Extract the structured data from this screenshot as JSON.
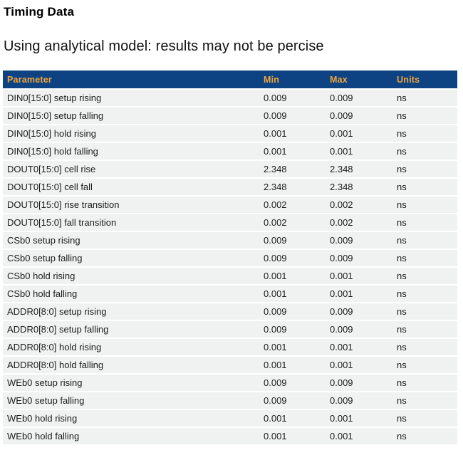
{
  "page": {
    "title": "Timing Data",
    "subtitle": "Using analytical model: results may not be percise"
  },
  "table": {
    "columns": [
      "Parameter",
      "Min",
      "Max",
      "Units"
    ],
    "rows": [
      {
        "parameter": "DIN0[15:0] setup rising",
        "min": "0.009",
        "max": "0.009",
        "units": "ns"
      },
      {
        "parameter": "DIN0[15:0] setup falling",
        "min": "0.009",
        "max": "0.009",
        "units": "ns"
      },
      {
        "parameter": "DIN0[15:0] hold rising",
        "min": "0.001",
        "max": "0.001",
        "units": "ns"
      },
      {
        "parameter": "DIN0[15:0] hold falling",
        "min": "0.001",
        "max": "0.001",
        "units": "ns"
      },
      {
        "parameter": "DOUT0[15:0] cell rise",
        "min": "2.348",
        "max": "2.348",
        "units": "ns"
      },
      {
        "parameter": "DOUT0[15:0] cell fall",
        "min": "2.348",
        "max": "2.348",
        "units": "ns"
      },
      {
        "parameter": "DOUT0[15:0] rise transition",
        "min": "0.002",
        "max": "0.002",
        "units": "ns"
      },
      {
        "parameter": "DOUT0[15:0] fall transition",
        "min": "0.002",
        "max": "0.002",
        "units": "ns"
      },
      {
        "parameter": "CSb0 setup rising",
        "min": "0.009",
        "max": "0.009",
        "units": "ns"
      },
      {
        "parameter": "CSb0 setup falling",
        "min": "0.009",
        "max": "0.009",
        "units": "ns"
      },
      {
        "parameter": "CSb0 hold rising",
        "min": "0.001",
        "max": "0.001",
        "units": "ns"
      },
      {
        "parameter": "CSb0 hold falling",
        "min": "0.001",
        "max": "0.001",
        "units": "ns"
      },
      {
        "parameter": "ADDR0[8:0] setup rising",
        "min": "0.009",
        "max": "0.009",
        "units": "ns"
      },
      {
        "parameter": "ADDR0[8:0] setup falling",
        "min": "0.009",
        "max": "0.009",
        "units": "ns"
      },
      {
        "parameter": "ADDR0[8:0] hold rising",
        "min": "0.001",
        "max": "0.001",
        "units": "ns"
      },
      {
        "parameter": "ADDR0[8:0] hold falling",
        "min": "0.001",
        "max": "0.001",
        "units": "ns"
      },
      {
        "parameter": "WEb0 setup rising",
        "min": "0.009",
        "max": "0.009",
        "units": "ns"
      },
      {
        "parameter": "WEb0 setup falling",
        "min": "0.009",
        "max": "0.009",
        "units": "ns"
      },
      {
        "parameter": "WEb0 hold rising",
        "min": "0.001",
        "max": "0.001",
        "units": "ns"
      },
      {
        "parameter": "WEb0 hold falling",
        "min": "0.001",
        "max": "0.001",
        "units": "ns"
      }
    ]
  },
  "colors": {
    "header_bg": "#0d4383",
    "header_text": "#f2a33c",
    "row_bg": "#f0f1f1",
    "row_text": "#1c1c1c"
  }
}
